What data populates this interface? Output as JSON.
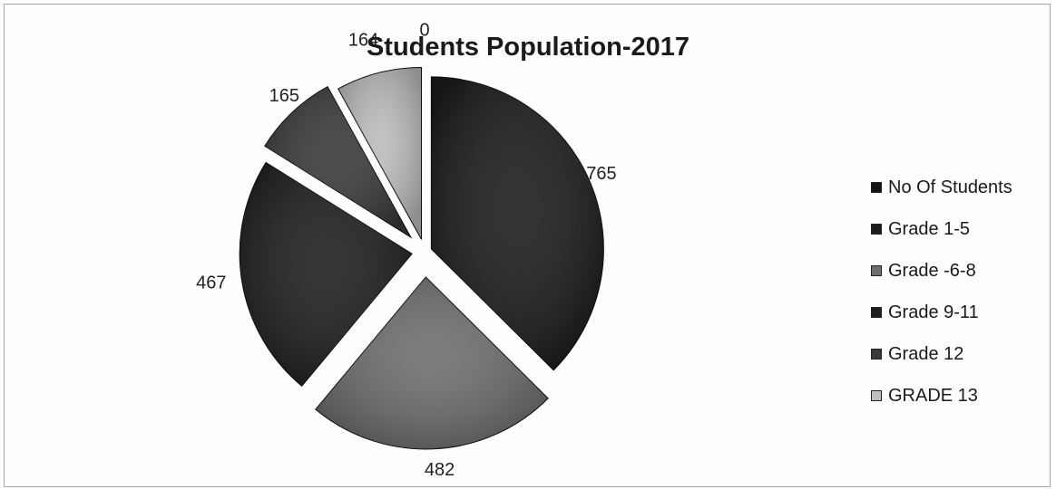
{
  "chart_data": {
    "type": "pie",
    "title": "Students Population-2017",
    "categories": [
      "No Of Students",
      "Grade 1-5",
      "Grade -6-8",
      "Grade 9-11",
      "Grade 12",
      "GRADE 13"
    ],
    "values": [
      0,
      765,
      482,
      467,
      165,
      164
    ],
    "legend_position": "right",
    "exploded": true,
    "colors": [
      "#141414",
      "#1c1c1c",
      "#6e6e6e",
      "#1e1e1e",
      "#3a3a3a",
      "#bdbdbd"
    ]
  }
}
